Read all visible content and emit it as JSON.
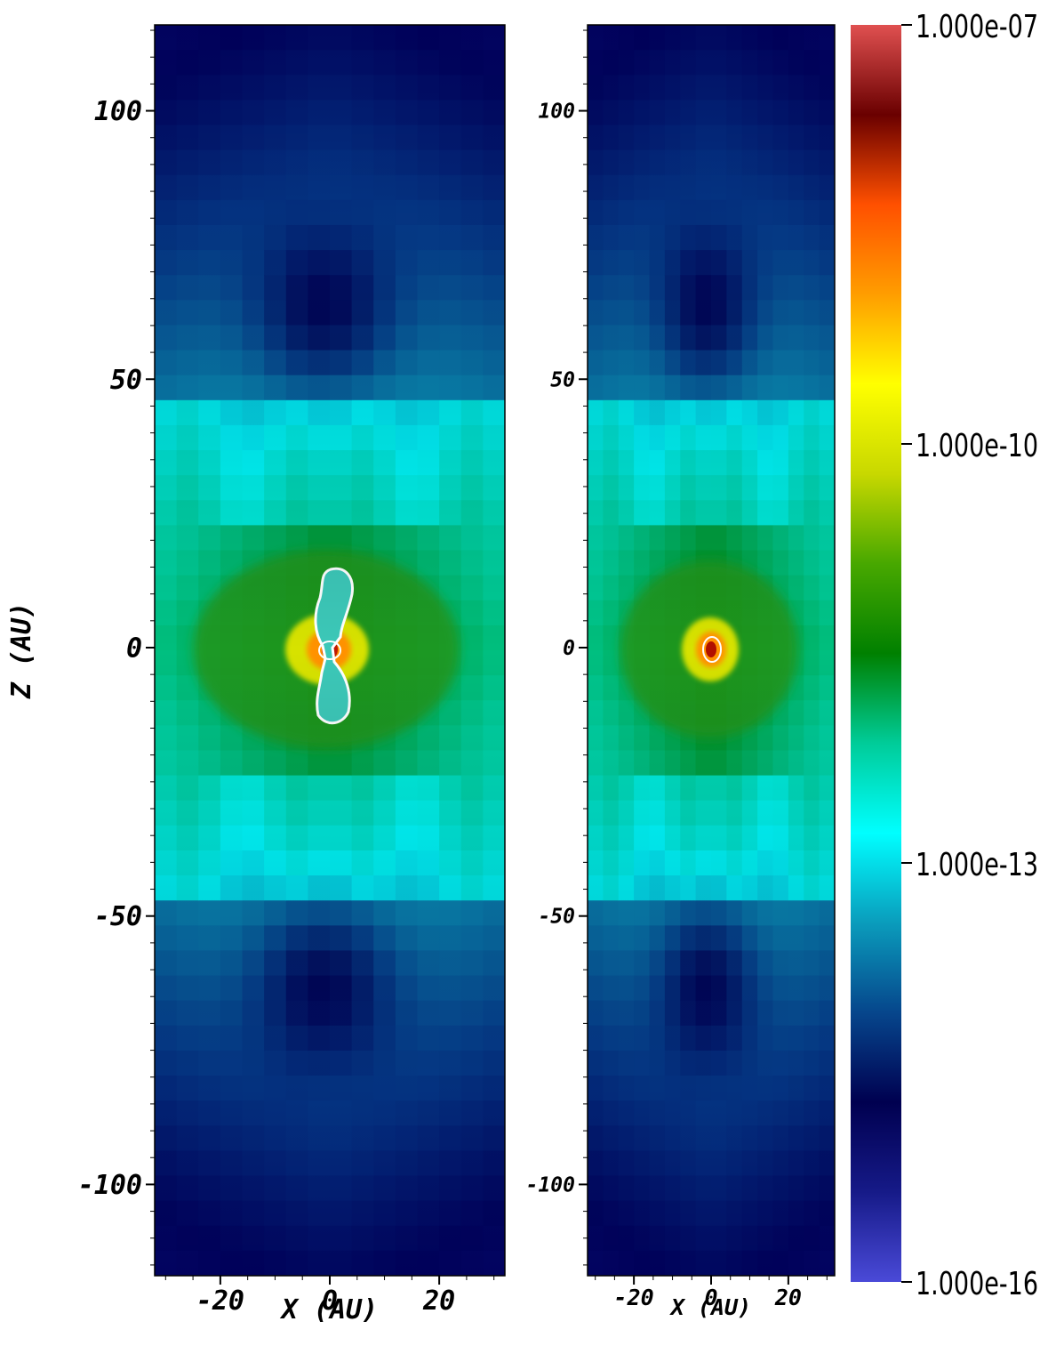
{
  "chart_data": [
    {
      "type": "heatmap",
      "panel": "left",
      "xlabel": "X (AU)",
      "ylabel": "Z (AU)",
      "xlim": [
        -32,
        32
      ],
      "ylim": [
        -117,
        116
      ],
      "x_ticks": [
        -20,
        0,
        20
      ],
      "y_ticks": [
        100,
        50,
        0,
        -50,
        -100
      ],
      "field": {
        "background_cells": true,
        "central_density_peak": 1e-09,
        "contour": {
          "color": "white",
          "shape": "bipolar-lobe",
          "z_extent": [
            -14,
            15
          ]
        }
      }
    },
    {
      "type": "heatmap",
      "panel": "right",
      "xlabel": "X (AU)",
      "ylabel": "",
      "xlim": [
        -32,
        32
      ],
      "ylim": [
        -117,
        116
      ],
      "x_ticks": [
        -20,
        0,
        20
      ],
      "y_ticks": [
        100,
        50,
        0,
        -50,
        -100
      ],
      "field": {
        "background_cells": true,
        "central_density_peak": 1e-09,
        "contour": {
          "color": "white",
          "shape": "compact-ring",
          "z_extent": [
            -3,
            3
          ]
        }
      }
    }
  ],
  "colorbar": {
    "scale": "log",
    "min": 1e-16,
    "max": 1e-07,
    "labels": [
      "1.000e-07",
      "1.000e-10",
      "1.000e-13",
      "1.000e-16"
    ],
    "colors": [
      "#4a4ad8",
      "#161a88",
      "#000050",
      "#06468c",
      "#0a9cbc",
      "#00ffff",
      "#00cc99",
      "#008000",
      "#48a800",
      "#c8d800",
      "#ffff00",
      "#ff9d00",
      "#ff5000",
      "#6a0000",
      "#e05050"
    ]
  }
}
